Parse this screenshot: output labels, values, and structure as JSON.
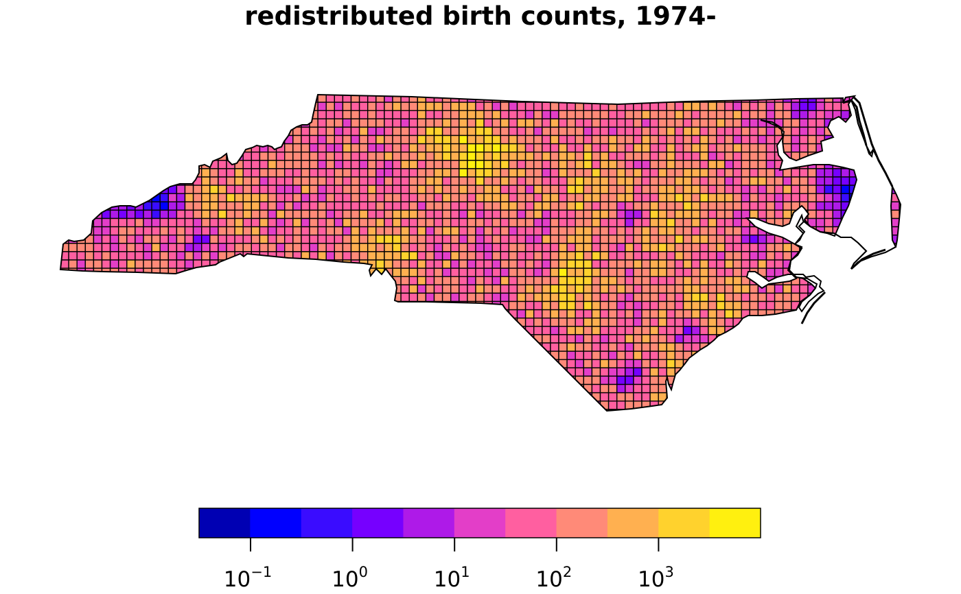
{
  "title": "redistributed birth counts, 1974-",
  "legend": {
    "colors": [
      "#0000b3",
      "#0000ff",
      "#3a0cff",
      "#7600ff",
      "#ae1ae8",
      "#e33ec8",
      "#ff5fa0",
      "#ff8a78",
      "#ffb050",
      "#ffd22d",
      "#fff00f"
    ],
    "scale": "log10",
    "ticks": [
      {
        "base": "10",
        "exp": "−1"
      },
      {
        "base": "10",
        "exp": "0"
      },
      {
        "base": "10",
        "exp": "1"
      },
      {
        "base": "10",
        "exp": "2"
      },
      {
        "base": "10",
        "exp": "3"
      }
    ]
  },
  "chart_data": {
    "type": "heatmap",
    "title": "redistributed birth counts, 1974-",
    "value_scale": "log10",
    "color_classes": 11,
    "legend_ticks": [
      "10^-1",
      "10^0",
      "10^1",
      "10^2",
      "10^3"
    ],
    "legend_placement": "bottom"
  }
}
